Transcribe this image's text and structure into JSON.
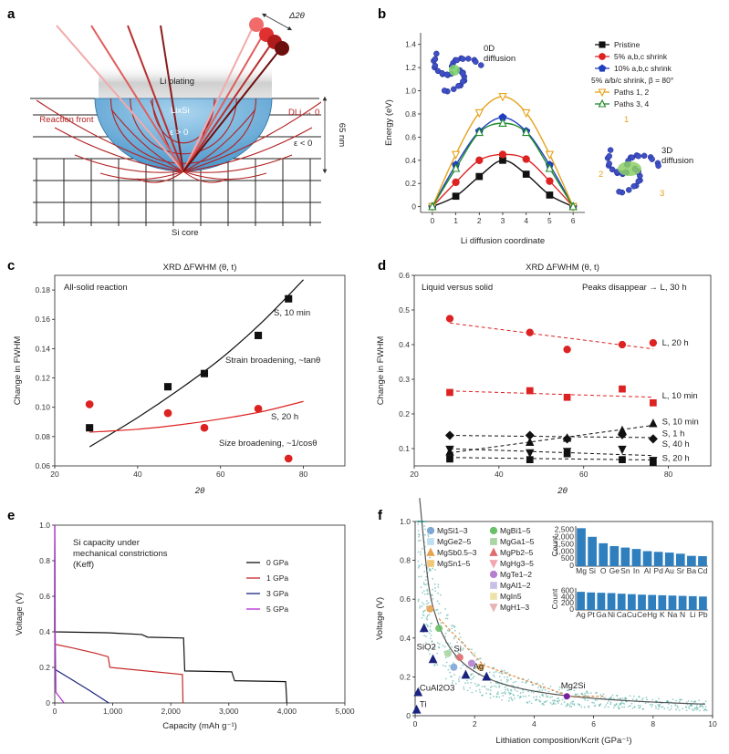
{
  "panels": {
    "a": "a",
    "b": "b",
    "c": "c",
    "d": "d",
    "e": "e",
    "f": "f"
  },
  "panel_a": {
    "li_plating": "Li plating",
    "lixsi": "LixSi",
    "eps_pos": "ε > 0",
    "eps_neg": "ε < 0",
    "d_li": "DLi → 0",
    "reaction_front": "Reaction front",
    "si_core": "Si core",
    "depth": "65 nm",
    "delta2theta": "Δ2θ",
    "colors": {
      "shell": "#5aa7d6",
      "plating": "#d8d8d8",
      "rays": "#b22222"
    }
  },
  "chart_data": [
    {
      "id": "b",
      "type": "line",
      "xlabel": "Li diffusion coordinate",
      "ylabel": "Energy (eV)",
      "xlim": [
        -0.5,
        6.5
      ],
      "ylim": [
        -0.05,
        1.5
      ],
      "xticks": [
        "0",
        "1",
        "2",
        "3",
        "4",
        "5",
        "6"
      ],
      "yticks": [
        "0",
        "0.2",
        "0.4",
        "0.6",
        "0.8",
        "1.0",
        "1.2",
        "1.4"
      ],
      "x": [
        0,
        1,
        2,
        3,
        4,
        5,
        6
      ],
      "series": [
        {
          "name": "Pristine",
          "color": "#111111",
          "marker": "square",
          "values": [
            0,
            0.09,
            0.26,
            0.4,
            0.28,
            0.1,
            0
          ]
        },
        {
          "name": "5% a,b,c shrink",
          "color": "#dd2222",
          "marker": "circle",
          "values": [
            0,
            0.21,
            0.4,
            0.45,
            0.41,
            0.22,
            0
          ]
        },
        {
          "name": "10% a,b,c shrink",
          "color": "#1f3fbf",
          "marker": "pentagon",
          "values": [
            0,
            0.36,
            0.65,
            0.77,
            0.65,
            0.36,
            0
          ]
        },
        {
          "name": "Paths 1, 2",
          "color": "#e6a21a",
          "marker": "tri-down",
          "values": [
            0,
            0.45,
            0.81,
            0.95,
            0.81,
            0.45,
            0
          ]
        },
        {
          "name": "Paths 3, 4",
          "color": "#1f8a2b",
          "marker": "tri-up",
          "values": [
            0,
            0.33,
            0.64,
            0.72,
            0.64,
            0.33,
            0
          ]
        }
      ],
      "legend_header": "5% a/b/c shrink, β = 80°",
      "annotations": [
        "0D diffusion",
        "3D diffusion"
      ],
      "path_labels": [
        "1",
        "2",
        "3"
      ]
    },
    {
      "id": "c",
      "type": "scatter",
      "title": "XRD ΔFWHM (θ, t)",
      "xlabel": "2θ",
      "ylabel": "Change in FWHM",
      "xlim": [
        20,
        90
      ],
      "ylim": [
        0.06,
        0.19
      ],
      "xticks": [
        "20",
        "40",
        "60",
        "80"
      ],
      "yticks": [
        "0.06",
        "0.08",
        "0.10",
        "0.12",
        "0.14",
        "0.16",
        "0.18"
      ],
      "series": [
        {
          "name": "S, 10 min",
          "color": "#111111",
          "marker": "square",
          "points": [
            [
              28.4,
              0.086
            ],
            [
              47.3,
              0.114
            ],
            [
              56.1,
              0.123
            ],
            [
              69.1,
              0.149
            ],
            [
              76.4,
              0.174
            ]
          ],
          "fit": [
            [
              28.4,
              0.073
            ],
            [
              40,
              0.093
            ],
            [
              50,
              0.112
            ],
            [
              60,
              0.133
            ],
            [
              70,
              0.158
            ],
            [
              80,
              0.187
            ]
          ]
        },
        {
          "name": "S, 20 h",
          "color": "#dd2222",
          "marker": "circle",
          "points": [
            [
              28.4,
              0.102
            ],
            [
              47.3,
              0.096
            ],
            [
              56.1,
              0.086
            ],
            [
              69.1,
              0.099
            ],
            [
              76.4,
              0.065
            ]
          ],
          "fit": [
            [
              28.4,
              0.083
            ],
            [
              40,
              0.085
            ],
            [
              50,
              0.088
            ],
            [
              60,
              0.092
            ],
            [
              70,
              0.097
            ],
            [
              80,
              0.104
            ]
          ]
        }
      ],
      "annotations": [
        "All-solid reaction",
        "S, 10 min",
        "Strain broadening, ~tanθ",
        "S, 20 h",
        "Size broadening, ~1/cosθ"
      ]
    },
    {
      "id": "d",
      "type": "scatter",
      "title": "XRD ΔFWHM (θ, t)",
      "xlabel": "2θ",
      "ylabel": "Change in FWHM",
      "xlim": [
        20,
        90
      ],
      "ylim": [
        0.05,
        0.6
      ],
      "xticks": [
        "20",
        "40",
        "60",
        "80"
      ],
      "yticks": [
        "0.1",
        "0.2",
        "0.3",
        "0.4",
        "0.5",
        "0.6"
      ],
      "series": [
        {
          "name": "L, 20 h",
          "color": "#dd2222",
          "marker": "circle",
          "points": [
            [
              28.4,
              0.475
            ],
            [
              47.3,
              0.435
            ],
            [
              56.1,
              0.386
            ],
            [
              69.1,
              0.4
            ],
            [
              76.4,
              0.405
            ]
          ]
        },
        {
          "name": "L, 10 min",
          "color": "#dd2222",
          "marker": "square",
          "points": [
            [
              28.4,
              0.262
            ],
            [
              47.3,
              0.267
            ],
            [
              56.1,
              0.248
            ],
            [
              69.1,
              0.272
            ],
            [
              76.4,
              0.232
            ]
          ]
        },
        {
          "name": "S, 10 min",
          "color": "#111111",
          "marker": "tri-up",
          "points": [
            [
              28.4,
              0.09
            ],
            [
              47.3,
              0.118
            ],
            [
              56.1,
              0.13
            ],
            [
              69.1,
              0.152
            ],
            [
              76.4,
              0.172
            ]
          ]
        },
        {
          "name": "S, 1 h",
          "color": "#111111",
          "marker": "diamond",
          "points": [
            [
              28.4,
              0.138
            ],
            [
              47.3,
              0.138
            ],
            [
              56.1,
              0.128
            ],
            [
              69.1,
              0.14
            ],
            [
              76.4,
              0.128
            ]
          ]
        },
        {
          "name": "S, 40 h",
          "color": "#111111",
          "marker": "tri-down",
          "points": [
            [
              28.4,
              0.098
            ],
            [
              47.3,
              0.088
            ],
            [
              56.1,
              0.092
            ],
            [
              69.1,
              0.098
            ],
            [
              76.4,
              0.066
            ]
          ]
        },
        {
          "name": "S, 20 h",
          "color": "#111111",
          "marker": "square",
          "points": [
            [
              28.4,
              0.07
            ],
            [
              47.3,
              0.068
            ],
            [
              56.1,
              0.085
            ],
            [
              69.1,
              0.068
            ],
            [
              76.4,
              0.06
            ]
          ]
        }
      ],
      "annotations": [
        "Liquid versus solid",
        "Peaks disappear → L, 30 h"
      ]
    },
    {
      "id": "e",
      "type": "line",
      "xlabel": "Capacity (mAh g⁻¹)",
      "ylabel": "Voltage (V)",
      "xlim": [
        0,
        5000
      ],
      "ylim": [
        0,
        1.0
      ],
      "xticks": [
        "0",
        "1,000",
        "2,000",
        "3,000",
        "4,000",
        "5,000"
      ],
      "yticks": [
        "0",
        "0.2",
        "0.4",
        "0.6",
        "0.8",
        "1.0"
      ],
      "annotation": "Si capacity under mechanical constrictions (Keff)",
      "series": [
        {
          "name": "0 GPa",
          "color": "#111111",
          "points": [
            [
              0,
              1.0
            ],
            [
              0,
              0.4
            ],
            [
              900,
              0.395
            ],
            [
              1500,
              0.385
            ],
            [
              1600,
              0.37
            ],
            [
              2220,
              0.365
            ],
            [
              2240,
              0.18
            ],
            [
              3050,
              0.175
            ],
            [
              3100,
              0.125
            ],
            [
              3980,
              0.12
            ],
            [
              4000,
              0
            ]
          ]
        },
        {
          "name": "1 GPa",
          "color": "#c62828",
          "points": [
            [
              0,
              0.33
            ],
            [
              300,
              0.31
            ],
            [
              700,
              0.28
            ],
            [
              920,
              0.26
            ],
            [
              950,
              0.2
            ],
            [
              2200,
              0.16
            ],
            [
              2210,
              0
            ]
          ]
        },
        {
          "name": "3 GPa",
          "color": "#1a237e",
          "points": [
            [
              0,
              0.19
            ],
            [
              300,
              0.13
            ],
            [
              600,
              0.07
            ],
            [
              930,
              0
            ]
          ]
        },
        {
          "name": "5 GPa",
          "color": "#b52bd6",
          "points": [
            [
              0,
              1.0
            ],
            [
              5,
              0.8
            ],
            [
              8,
              0.4
            ],
            [
              20,
              0.06
            ],
            [
              90,
              0.03
            ],
            [
              160,
              0
            ]
          ]
        }
      ]
    },
    {
      "id": "f",
      "type": "scatter",
      "xlabel": "Lithiation composition/Kcrit (GPa⁻¹)",
      "ylabel": "Voltage (V)",
      "xlim": [
        0,
        10
      ],
      "ylim": [
        0,
        1.0
      ],
      "xticks": [
        "0",
        "2",
        "4",
        "6",
        "8",
        "10"
      ],
      "yticks": [
        "0",
        "0.2",
        "0.4",
        "0.6",
        "0.8",
        "1.0"
      ],
      "legend": [
        "MgSi1–3",
        "MgGe2–5",
        "MgSb0.5–3",
        "MgSn1–5",
        "MgBi1–5",
        "MgGa1–5",
        "MgPb2–5",
        "MgHg3–5",
        "MgTe1–2",
        "MgAl1–2",
        "MgIn5",
        "MgH1–3"
      ],
      "legend_colors": [
        "#7fa7d6",
        "#bde0f0",
        "#e7a451",
        "#f2c879",
        "#6abf69",
        "#a8d5a2",
        "#e06c6c",
        "#f2a7b0",
        "#b67fd0",
        "#c9c0e6",
        "#ede3a8",
        "#e8b4b4"
      ],
      "labels": [
        "SiO2",
        "CuAl2O3",
        "Ti",
        "Si",
        "Ag",
        "Mg2Si"
      ],
      "inset_top": {
        "ylabel": "Count",
        "yticks": [
          "0",
          "500",
          "1,000",
          "1,500",
          "2,000",
          "2,500"
        ],
        "categories": [
          "Mg",
          "Si",
          "O",
          "Ge",
          "Sn",
          "In",
          "Al",
          "Pd",
          "Au",
          "Sr",
          "Ba",
          "Cd"
        ],
        "values": [
          2650,
          2050,
          1600,
          1400,
          1300,
          1200,
          1050,
          1000,
          950,
          870,
          720,
          700
        ]
      },
      "inset_bottom": {
        "ylabel": "Count",
        "yticks": [
          "0",
          "200",
          "400",
          "600"
        ],
        "categories": [
          "Ag",
          "Pt",
          "Ga",
          "Ni",
          "Ca",
          "Cu",
          "Ce",
          "Hg",
          "K",
          "Na",
          "N",
          "Li",
          "Pb"
        ],
        "values": [
          580,
          560,
          550,
          540,
          520,
          505,
          490,
          480,
          470,
          460,
          450,
          440,
          430
        ]
      }
    }
  ]
}
